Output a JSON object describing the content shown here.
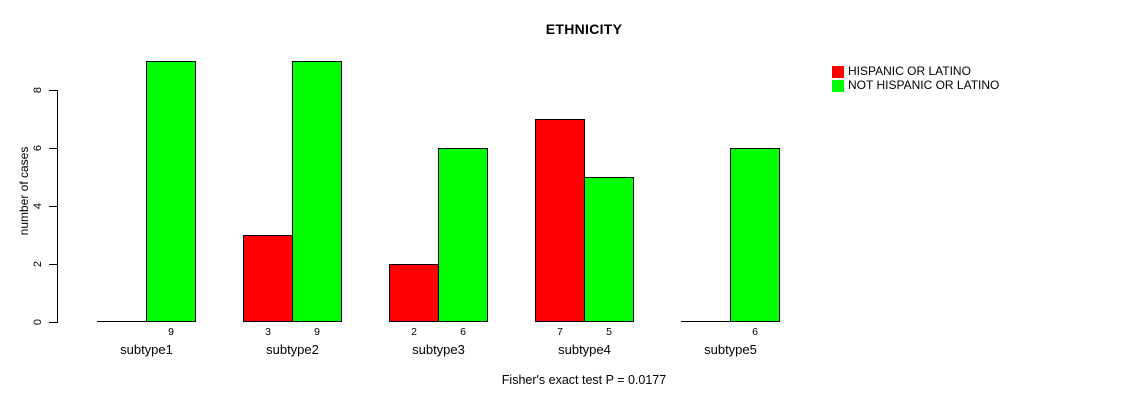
{
  "title": "ETHNICITY",
  "y_axis": {
    "label": "number of cases",
    "ticks": [
      0,
      2,
      4,
      6,
      8
    ]
  },
  "caption": "Fisher's exact test P = 0.0177",
  "legend": {
    "items": [
      {
        "label": "HISPANIC OR LATINO",
        "color": "#ff0000"
      },
      {
        "label": "NOT HISPANIC OR LATINO",
        "color": "#00ff00"
      }
    ]
  },
  "chart_data": {
    "type": "bar",
    "title": "ETHNICITY",
    "xlabel": "",
    "ylabel": "number of cases",
    "ylim": [
      0,
      9
    ],
    "grid": false,
    "legend_position": "top-right-inside",
    "categories": [
      "subtype1",
      "subtype2",
      "subtype3",
      "subtype4",
      "subtype5"
    ],
    "series": [
      {
        "name": "HISPANIC OR LATINO",
        "color": "#ff0000",
        "values": [
          0,
          3,
          2,
          7,
          0
        ]
      },
      {
        "name": "NOT HISPANIC OR LATINO",
        "color": "#00ff00",
        "values": [
          9,
          9,
          6,
          5,
          6
        ]
      }
    ],
    "bar_value_labels_shown_for_nonzero": true,
    "annotation": "Fisher's exact test P = 0.0177"
  }
}
